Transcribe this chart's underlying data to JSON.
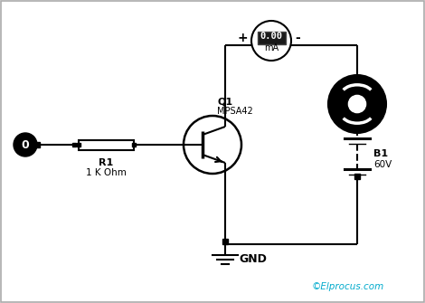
{
  "bg_color": "#ffffff",
  "line_color": "#000000",
  "watermark": "©Elprocus.com",
  "watermark_color": "#00aacc",
  "transistor_label": "Q1",
  "transistor_model": "MPSA42",
  "resistor_label": "R1",
  "resistor_value": "1 K Ohm",
  "battery_label": "B1",
  "battery_value": "60V",
  "ammeter_reading": "0.00",
  "ammeter_unit": "mA",
  "gnd_label": "GND",
  "plus_label": "+",
  "minus_label": "-"
}
